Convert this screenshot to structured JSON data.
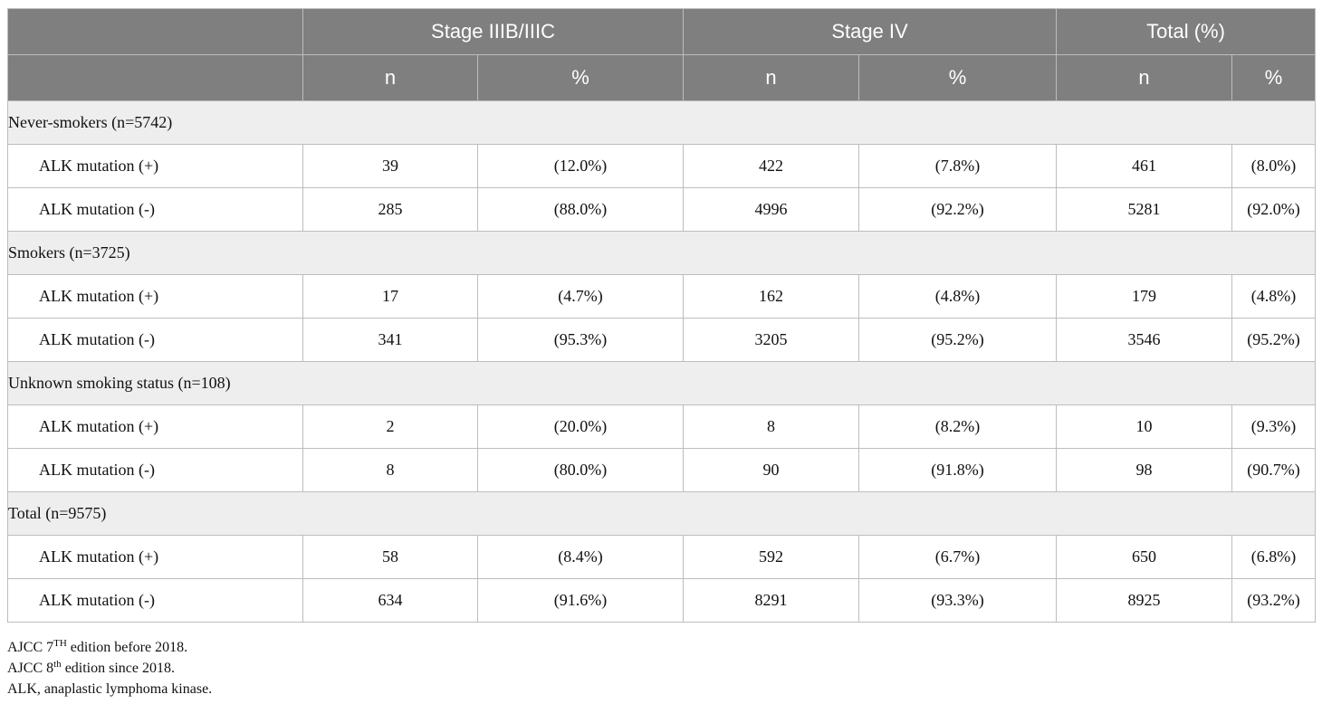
{
  "table": {
    "headers": {
      "stage_iiib": "Stage IIIB/IIIC",
      "stage_iv": "Stage IV",
      "total": "Total (%)",
      "n": "n",
      "pct": "%"
    },
    "groups": [
      {
        "label": "Never-smokers (n=5742)",
        "rows": [
          {
            "label": "ALK mutation (+)",
            "s3_n": "39",
            "s3_pct": "(12.0%)",
            "s4_n": "422",
            "s4_pct": "(7.8%)",
            "t_n": "461",
            "t_pct": "(8.0%)"
          },
          {
            "label": "ALK mutation (-)",
            "s3_n": "285",
            "s3_pct": "(88.0%)",
            "s4_n": "4996",
            "s4_pct": "(92.2%)",
            "t_n": "5281",
            "t_pct": "(92.0%)"
          }
        ]
      },
      {
        "label": "Smokers (n=3725)",
        "rows": [
          {
            "label": "ALK mutation (+)",
            "s3_n": "17",
            "s3_pct": "(4.7%)",
            "s4_n": "162",
            "s4_pct": "(4.8%)",
            "t_n": "179",
            "t_pct": "(4.8%)"
          },
          {
            "label": "ALK mutation (-)",
            "s3_n": "341",
            "s3_pct": "(95.3%)",
            "s4_n": "3205",
            "s4_pct": "(95.2%)",
            "t_n": "3546",
            "t_pct": "(95.2%)"
          }
        ]
      },
      {
        "label": "Unknown smoking status (n=108)",
        "rows": [
          {
            "label": "ALK mutation (+)",
            "s3_n": "2",
            "s3_pct": "(20.0%)",
            "s4_n": "8",
            "s4_pct": "(8.2%)",
            "t_n": "10",
            "t_pct": "(9.3%)"
          },
          {
            "label": "ALK mutation (-)",
            "s3_n": "8",
            "s3_pct": "(80.0%)",
            "s4_n": "90",
            "s4_pct": "(91.8%)",
            "t_n": "98",
            "t_pct": "(90.7%)"
          }
        ]
      },
      {
        "label": "Total (n=9575)",
        "rows": [
          {
            "label": "ALK mutation (+)",
            "s3_n": "58",
            "s3_pct": "(8.4%)",
            "s4_n": "592",
            "s4_pct": "(6.7%)",
            "t_n": "650",
            "t_pct": "(6.8%)"
          },
          {
            "label": "ALK mutation (-)",
            "s3_n": "634",
            "s3_pct": "(91.6%)",
            "s4_n": "8291",
            "s4_pct": "(93.3%)",
            "t_n": "8925",
            "t_pct": "(93.2%)"
          }
        ]
      }
    ]
  },
  "footnotes": {
    "note1_pre": "AJCC 7",
    "note1_sup": "TH",
    "note1_post": " edition before 2018.",
    "note2_pre": "AJCC 8",
    "note2_sup": "th",
    "note2_post": " edition since 2018.",
    "note3": "ALK, anaplastic lymphoma kinase."
  }
}
